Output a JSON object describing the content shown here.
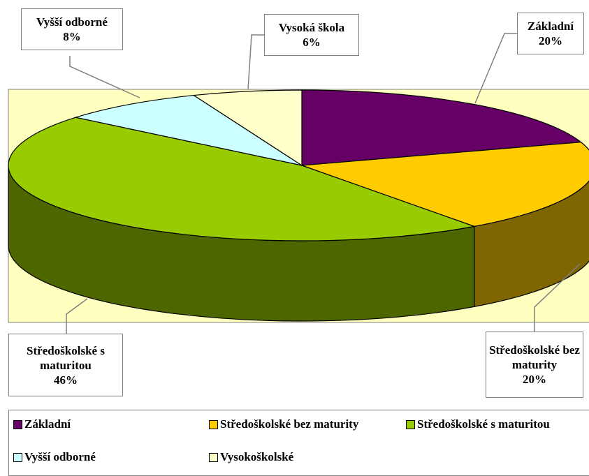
{
  "chart_data": {
    "type": "pie3d",
    "categories": [
      "Základní",
      "Středoškolské bez maturity",
      "Středoškolské s maturitou",
      "Vyšší odborné",
      "Vysokoškolské"
    ],
    "label_names": [
      "Základní",
      "Středoškolské bez maturity",
      "Středoškolské s maturitou",
      "Vyšší odborné",
      "Vysoká škola"
    ],
    "values": [
      20,
      20,
      46,
      8,
      6
    ],
    "value_labels": [
      "20%",
      "20%",
      "46%",
      "8%",
      "6%"
    ],
    "colors": [
      "#660066",
      "#ffcc00",
      "#99cc00",
      "#ccffff",
      "#ffffcc"
    ]
  }
}
